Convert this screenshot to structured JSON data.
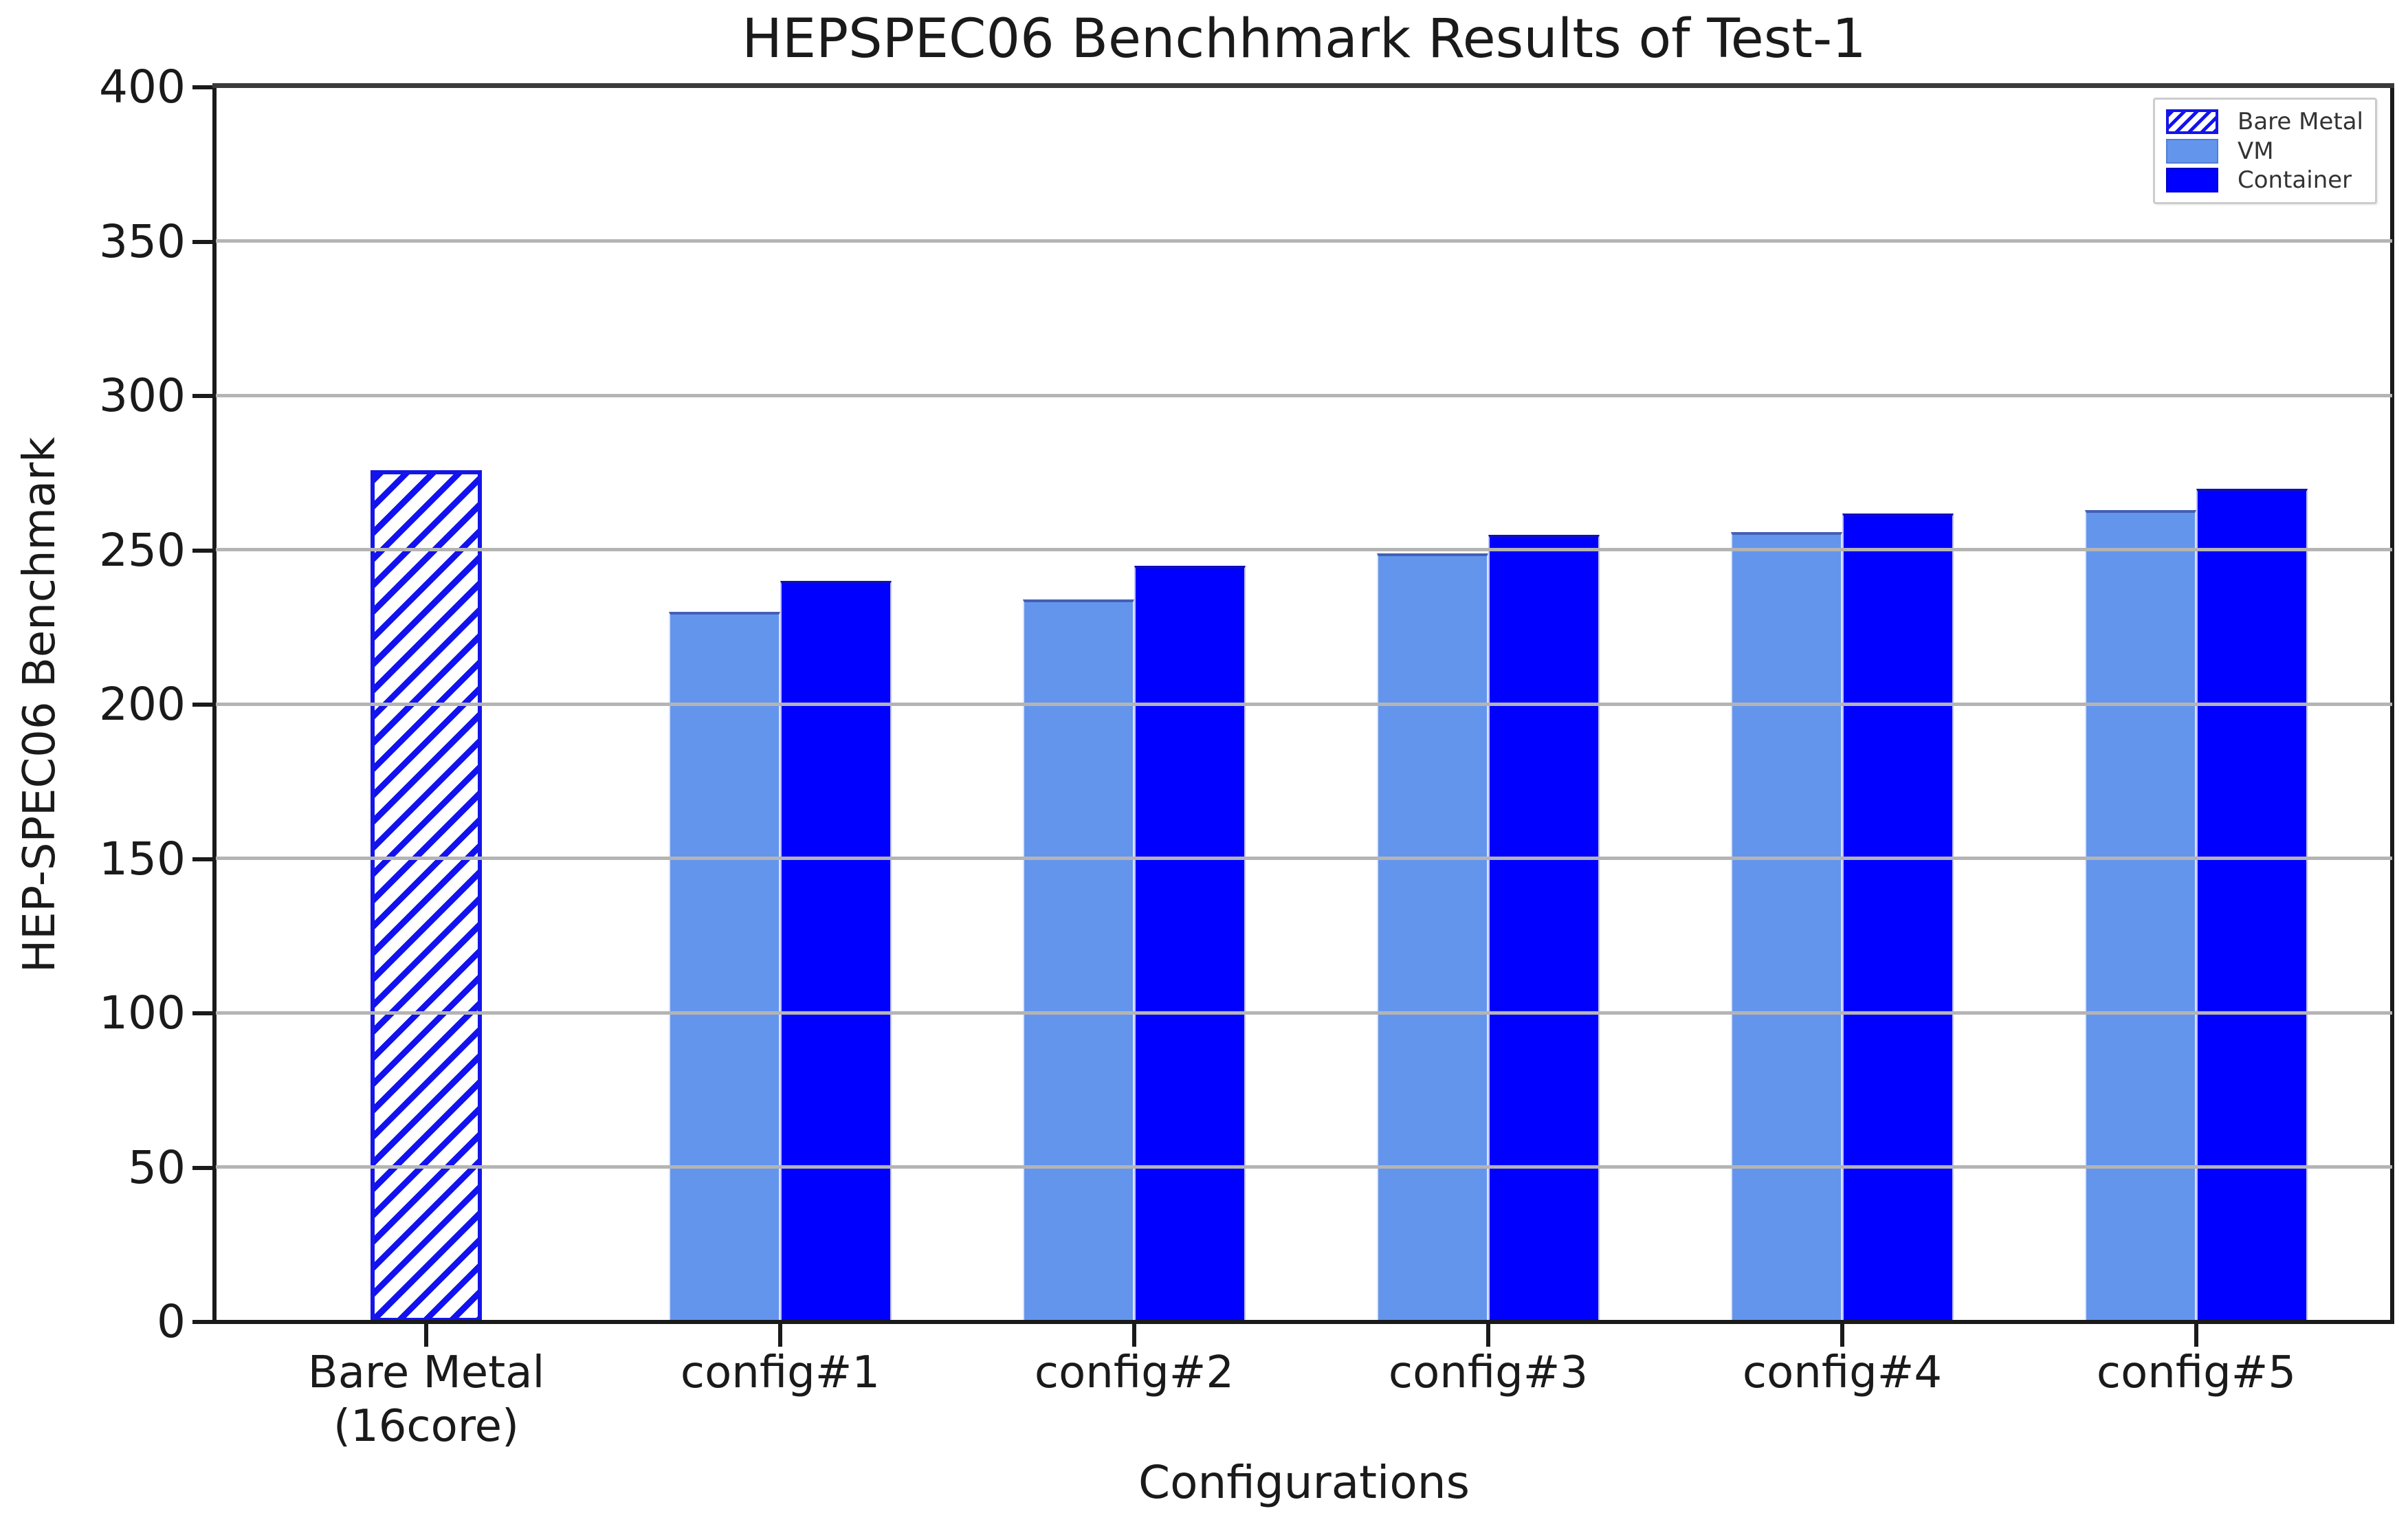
{
  "chart_data": {
    "type": "bar",
    "title": "HEPSPEC06 Benchhmark Results of Test-1",
    "xlabel": "Configurations",
    "ylabel": "HEP-SPEC06 Benchmark",
    "ylim": [
      0,
      400
    ],
    "yticks": [
      0,
      50,
      100,
      150,
      200,
      250,
      300,
      350,
      400
    ],
    "grid": true,
    "grid_color": "#b4b4b4",
    "legend_position": "upper right",
    "categories": [
      "Bare Metal\n(16core)",
      "config#1",
      "config#2",
      "config#3",
      "config#4",
      "config#5"
    ],
    "series": [
      {
        "name": "Bare Metal",
        "fill": "hatched",
        "color": "#0000ff",
        "hatch": "///",
        "values": [
          276,
          null,
          null,
          null,
          null,
          null
        ]
      },
      {
        "name": "VM",
        "fill": "solid",
        "color": "#6495ed",
        "values": [
          null,
          230,
          234,
          249,
          256,
          263
        ]
      },
      {
        "name": "Container",
        "fill": "solid",
        "color": "#0000ff",
        "values": [
          null,
          240,
          245,
          255,
          262,
          270
        ]
      }
    ]
  }
}
